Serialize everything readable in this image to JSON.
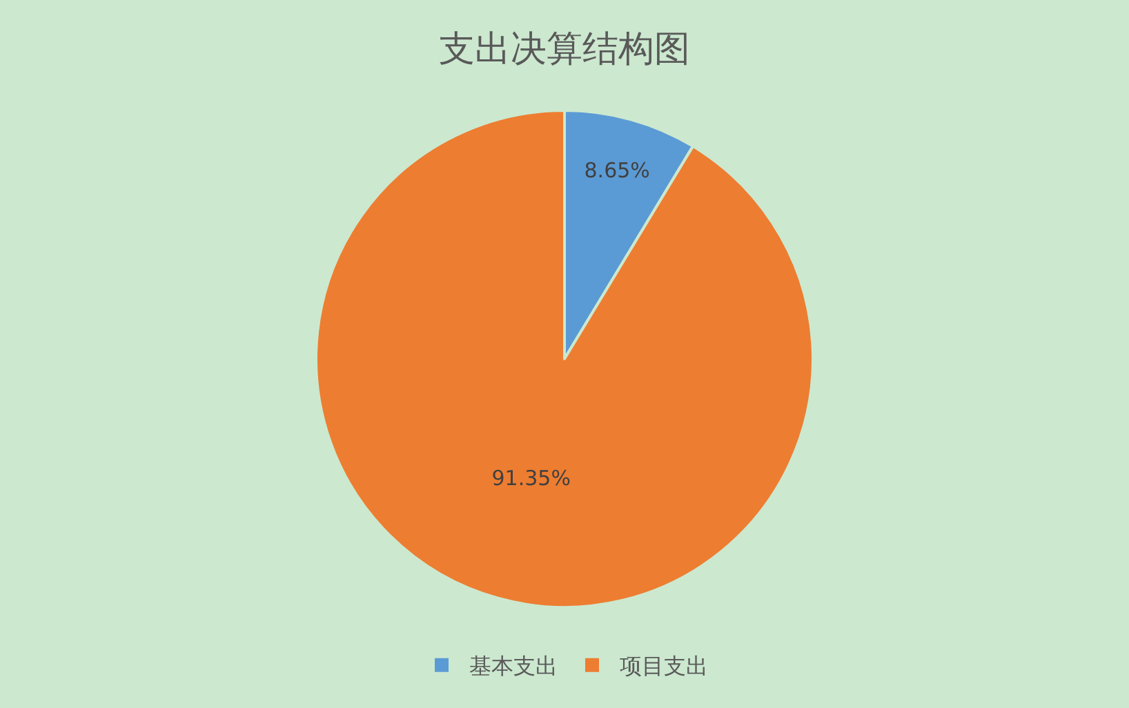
{
  "chart_data": {
    "type": "pie",
    "title": "支出决算结构图",
    "categories": [
      "基本支出",
      "项目支出"
    ],
    "values": [
      8.65,
      91.35
    ],
    "colors": [
      "#5b9bd5",
      "#ed7d31"
    ],
    "value_labels": [
      "8.65%",
      "91.35%"
    ],
    "legend": "bottom"
  }
}
